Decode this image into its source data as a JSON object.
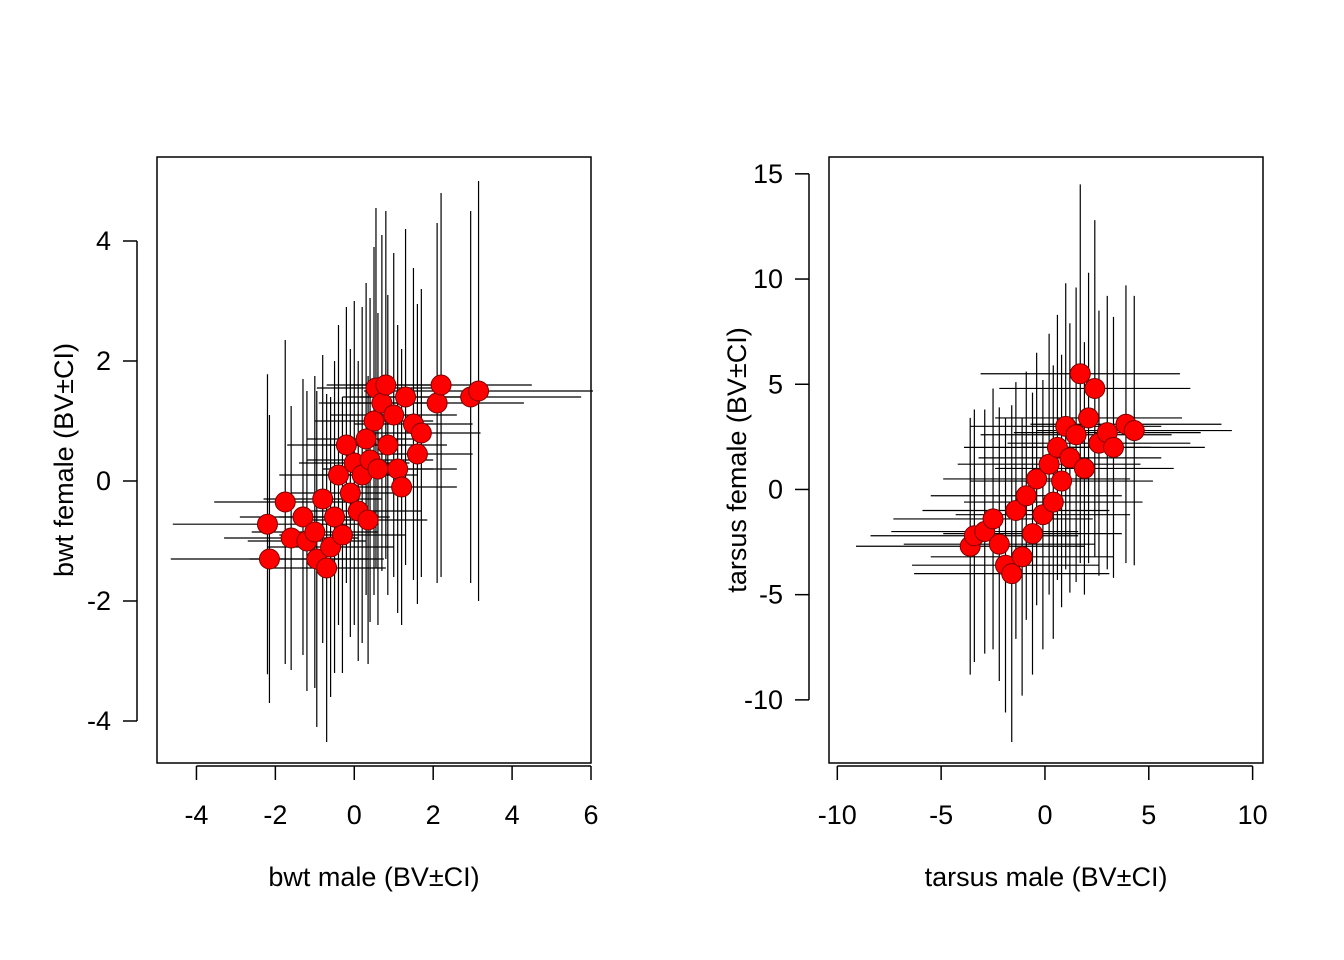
{
  "chart_data": [
    {
      "type": "scatter",
      "title": "",
      "xlabel": "bwt male (BV±CI)",
      "ylabel": "bwt female (BV±CI)",
      "xlim": [
        -5.0,
        6.0
      ],
      "ylim": [
        -4.7,
        5.4
      ],
      "xticks": [
        -4,
        -2,
        0,
        2,
        4,
        6
      ],
      "xtick_labels": [
        "-4",
        "-2",
        "0",
        "2",
        "4",
        "6"
      ],
      "yticks": [
        -4,
        -2,
        0,
        2,
        4
      ],
      "ytick_labels": [
        "-4",
        "-2",
        "0",
        "2",
        "4"
      ],
      "marker_color": "#ff0000",
      "errorbar_color": "#000000",
      "points": [
        {
          "x": -2.2,
          "y": -0.72,
          "xerr": 2.4,
          "yerr": 2.5
        },
        {
          "x": -2.15,
          "y": -1.3,
          "xerr": 2.5,
          "yerr": 2.4
        },
        {
          "x": -1.75,
          "y": -0.35,
          "xerr": 1.8,
          "yerr": 2.7
        },
        {
          "x": -1.6,
          "y": -0.95,
          "xerr": 1.7,
          "yerr": 2.2
        },
        {
          "x": -1.3,
          "y": -0.6,
          "xerr": 1.6,
          "yerr": 2.3
        },
        {
          "x": -1.2,
          "y": -1.0,
          "xerr": 1.5,
          "yerr": 2.5
        },
        {
          "x": -1.0,
          "y": -0.85,
          "xerr": 1.6,
          "yerr": 2.6
        },
        {
          "x": -0.95,
          "y": -1.3,
          "xerr": 1.7,
          "yerr": 2.8
        },
        {
          "x": -0.7,
          "y": -1.45,
          "xerr": 1.5,
          "yerr": 2.9
        },
        {
          "x": -0.6,
          "y": -1.1,
          "xerr": 1.6,
          "yerr": 2.5
        },
        {
          "x": -0.8,
          "y": -0.3,
          "xerr": 1.5,
          "yerr": 2.4
        },
        {
          "x": -0.5,
          "y": -0.6,
          "xerr": 1.4,
          "yerr": 2.6
        },
        {
          "x": -0.4,
          "y": 0.1,
          "xerr": 1.5,
          "yerr": 2.5
        },
        {
          "x": -0.3,
          "y": -0.9,
          "xerr": 1.6,
          "yerr": 2.3
        },
        {
          "x": -0.1,
          "y": -0.2,
          "xerr": 1.5,
          "yerr": 2.4
        },
        {
          "x": 0.0,
          "y": 0.3,
          "xerr": 1.4,
          "yerr": 2.7
        },
        {
          "x": -0.2,
          "y": 0.6,
          "xerr": 1.5,
          "yerr": 2.3
        },
        {
          "x": 0.1,
          "y": -0.5,
          "xerr": 1.6,
          "yerr": 2.5
        },
        {
          "x": 0.2,
          "y": 0.1,
          "xerr": 1.4,
          "yerr": 2.8
        },
        {
          "x": 0.3,
          "y": 0.7,
          "xerr": 1.5,
          "yerr": 2.6
        },
        {
          "x": 0.35,
          "y": -0.65,
          "xerr": 1.5,
          "yerr": 2.4
        },
        {
          "x": 0.4,
          "y": 0.35,
          "xerr": 1.6,
          "yerr": 2.7
        },
        {
          "x": 0.5,
          "y": 1.0,
          "xerr": 1.5,
          "yerr": 2.9
        },
        {
          "x": 0.55,
          "y": 1.55,
          "xerr": 1.5,
          "yerr": 3.0
        },
        {
          "x": 0.6,
          "y": 0.2,
          "xerr": 1.4,
          "yerr": 2.6
        },
        {
          "x": 0.7,
          "y": 1.3,
          "xerr": 1.6,
          "yerr": 2.8
        },
        {
          "x": 0.8,
          "y": 1.6,
          "xerr": 1.5,
          "yerr": 2.9
        },
        {
          "x": 0.85,
          "y": 0.6,
          "xerr": 1.5,
          "yerr": 2.5
        },
        {
          "x": 1.0,
          "y": 1.1,
          "xerr": 1.6,
          "yerr": 2.7
        },
        {
          "x": 1.1,
          "y": 0.2,
          "xerr": 1.5,
          "yerr": 2.4
        },
        {
          "x": 1.2,
          "y": -0.1,
          "xerr": 1.4,
          "yerr": 2.3
        },
        {
          "x": 1.3,
          "y": 1.4,
          "xerr": 1.6,
          "yerr": 2.8
        },
        {
          "x": 1.5,
          "y": 0.95,
          "xerr": 1.5,
          "yerr": 2.6
        },
        {
          "x": 1.6,
          "y": 0.45,
          "xerr": 1.4,
          "yerr": 2.5
        },
        {
          "x": 1.7,
          "y": 0.8,
          "xerr": 1.5,
          "yerr": 2.4
        },
        {
          "x": 2.1,
          "y": 1.3,
          "xerr": 2.2,
          "yerr": 3.0
        },
        {
          "x": 2.2,
          "y": 1.6,
          "xerr": 2.3,
          "yerr": 3.2
        },
        {
          "x": 2.95,
          "y": 1.4,
          "xerr": 2.8,
          "yerr": 3.1
        },
        {
          "x": 3.15,
          "y": 1.5,
          "xerr": 2.9,
          "yerr": 3.5
        }
      ]
    },
    {
      "type": "scatter",
      "title": "",
      "xlabel": "tarsus male (BV±CI)",
      "ylabel": "tarsus female (BV±CI)",
      "xlim": [
        -10.4,
        10.5
      ],
      "ylim": [
        -13.0,
        15.8
      ],
      "xticks": [
        -10,
        -5,
        0,
        5,
        10
      ],
      "xtick_labels": [
        "-10",
        "-5",
        "0",
        "5",
        "10"
      ],
      "yticks": [
        -10,
        -5,
        0,
        5,
        10,
        15
      ],
      "ytick_labels": [
        "-10",
        "-5",
        "0",
        "5",
        "10",
        "15"
      ],
      "marker_color": "#ff0000",
      "errorbar_color": "#000000",
      "points": [
        {
          "x": -3.6,
          "y": -2.7,
          "xerr": 5.5,
          "yerr": 6.1
        },
        {
          "x": -3.4,
          "y": -2.2,
          "xerr": 5.0,
          "yerr": 6.0
        },
        {
          "x": -2.9,
          "y": -2.0,
          "xerr": 4.5,
          "yerr": 5.8
        },
        {
          "x": -2.5,
          "y": -1.4,
          "xerr": 4.8,
          "yerr": 6.2
        },
        {
          "x": -2.2,
          "y": -2.6,
          "xerr": 4.6,
          "yerr": 6.5
        },
        {
          "x": -1.9,
          "y": -3.6,
          "xerr": 4.5,
          "yerr": 7.0
        },
        {
          "x": -1.6,
          "y": -4.0,
          "xerr": 4.7,
          "yerr": 8.0
        },
        {
          "x": -1.4,
          "y": -1.0,
          "xerr": 4.5,
          "yerr": 6.1
        },
        {
          "x": -1.1,
          "y": -3.2,
          "xerr": 4.4,
          "yerr": 6.6
        },
        {
          "x": -0.9,
          "y": -0.3,
          "xerr": 4.6,
          "yerr": 5.9
        },
        {
          "x": -0.6,
          "y": -2.1,
          "xerr": 4.3,
          "yerr": 6.7
        },
        {
          "x": -0.4,
          "y": 0.5,
          "xerr": 4.5,
          "yerr": 6.0
        },
        {
          "x": -0.1,
          "y": -1.2,
          "xerr": 4.2,
          "yerr": 6.4
        },
        {
          "x": 0.2,
          "y": 1.2,
          "xerr": 4.4,
          "yerr": 6.2
        },
        {
          "x": 0.4,
          "y": -0.6,
          "xerr": 4.3,
          "yerr": 6.5
        },
        {
          "x": 0.6,
          "y": 2.0,
          "xerr": 4.5,
          "yerr": 6.3
        },
        {
          "x": 0.8,
          "y": 0.4,
          "xerr": 4.4,
          "yerr": 6.0
        },
        {
          "x": 1.0,
          "y": 3.0,
          "xerr": 4.6,
          "yerr": 6.8
        },
        {
          "x": 1.2,
          "y": 1.5,
          "xerr": 4.4,
          "yerr": 6.4
        },
        {
          "x": 1.5,
          "y": 2.6,
          "xerr": 4.6,
          "yerr": 7.0
        },
        {
          "x": 1.7,
          "y": 5.5,
          "xerr": 4.8,
          "yerr": 9.0
        },
        {
          "x": 1.9,
          "y": 1.0,
          "xerr": 4.3,
          "yerr": 6.0
        },
        {
          "x": 2.1,
          "y": 3.4,
          "xerr": 4.5,
          "yerr": 6.9
        },
        {
          "x": 2.4,
          "y": 4.8,
          "xerr": 4.6,
          "yerr": 8.0
        },
        {
          "x": 2.6,
          "y": 2.2,
          "xerr": 4.4,
          "yerr": 6.3
        },
        {
          "x": 3.0,
          "y": 2.7,
          "xerr": 4.5,
          "yerr": 6.5
        },
        {
          "x": 3.3,
          "y": 2.0,
          "xerr": 4.4,
          "yerr": 6.2
        },
        {
          "x": 3.9,
          "y": 3.1,
          "xerr": 4.6,
          "yerr": 6.6
        },
        {
          "x": 4.3,
          "y": 2.8,
          "xerr": 4.7,
          "yerr": 6.4
        }
      ]
    }
  ]
}
